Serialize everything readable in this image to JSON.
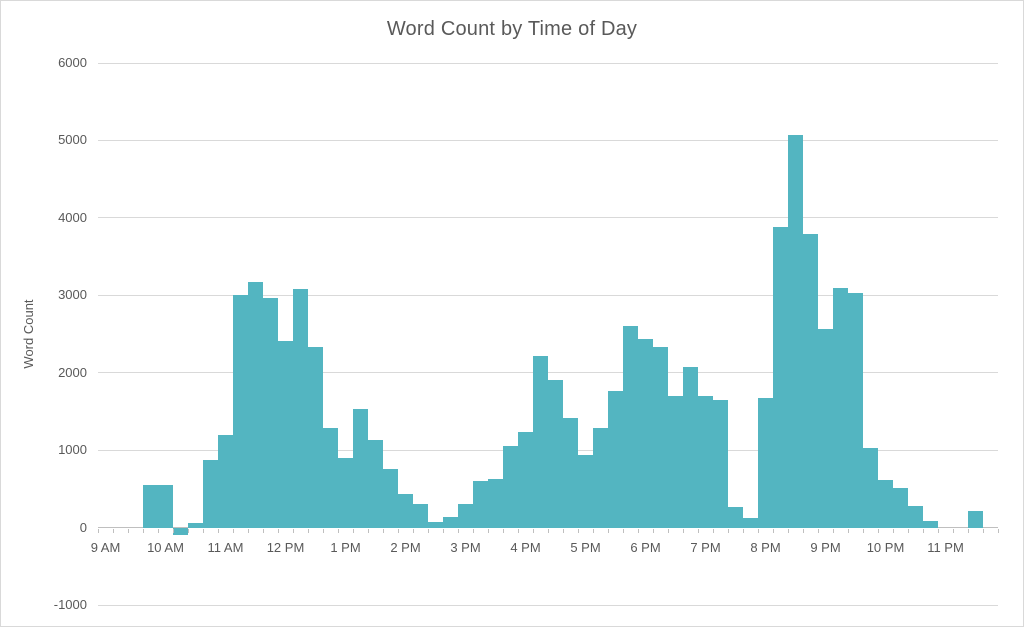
{
  "chart_data": {
    "type": "bar",
    "title": "Word Count by Time of Day",
    "xlabel": "",
    "ylabel": "Word Count",
    "ylim": [
      -1000,
      6000
    ],
    "yticks": [
      6000,
      5000,
      4000,
      3000,
      2000,
      1000,
      0,
      -1000
    ],
    "x_hour_labels": [
      "9 AM",
      "10 AM",
      "11 AM",
      "12 PM",
      "1 PM",
      "2 PM",
      "3 PM",
      "4 PM",
      "5 PM",
      "6 PM",
      "7 PM",
      "8 PM",
      "9 PM",
      "10 PM",
      "11 PM"
    ],
    "bin_minutes": 15,
    "grid": true,
    "legend_position": "none",
    "bar_color": "#53b5c1",
    "gridline_color": "#d9d9d9",
    "axis_color": "#bfbfbf",
    "text_color": "#595959",
    "categories": [
      "9:00 AM",
      "9:15 AM",
      "9:30 AM",
      "9:45 AM",
      "10:00 AM",
      "10:15 AM",
      "10:30 AM",
      "10:45 AM",
      "11:00 AM",
      "11:15 AM",
      "11:30 AM",
      "11:45 AM",
      "12:00 PM",
      "12:15 PM",
      "12:30 PM",
      "12:45 PM",
      "1:00 PM",
      "1:15 PM",
      "1:30 PM",
      "1:45 PM",
      "2:00 PM",
      "2:15 PM",
      "2:30 PM",
      "2:45 PM",
      "3:00 PM",
      "3:15 PM",
      "3:30 PM",
      "3:45 PM",
      "4:00 PM",
      "4:15 PM",
      "4:30 PM",
      "4:45 PM",
      "5:00 PM",
      "5:15 PM",
      "5:30 PM",
      "5:45 PM",
      "6:00 PM",
      "6:15 PM",
      "6:30 PM",
      "6:45 PM",
      "7:00 PM",
      "7:15 PM",
      "7:30 PM",
      "7:45 PM",
      "8:00 PM",
      "8:15 PM",
      "8:30 PM",
      "8:45 PM",
      "9:00 PM",
      "9:15 PM",
      "9:30 PM",
      "9:45 PM",
      "10:00 PM",
      "10:15 PM",
      "10:30 PM",
      "10:45 PM",
      "11:00 PM",
      "11:15 PM",
      "11:30 PM",
      "11:45 PM"
    ],
    "values": [
      0,
      0,
      0,
      550,
      550,
      -90,
      60,
      870,
      1200,
      3000,
      3170,
      2970,
      2410,
      3080,
      2330,
      1280,
      900,
      1530,
      1130,
      760,
      440,
      300,
      70,
      140,
      300,
      600,
      630,
      1050,
      1230,
      2210,
      1910,
      1420,
      935,
      1280,
      1760,
      2600,
      2430,
      2330,
      1700,
      2070,
      1700,
      1650,
      270,
      130,
      1670,
      3880,
      5070,
      3790,
      2560,
      3090,
      3030,
      1030,
      615,
      510,
      280,
      80,
      0,
      0,
      220,
      0
    ]
  }
}
